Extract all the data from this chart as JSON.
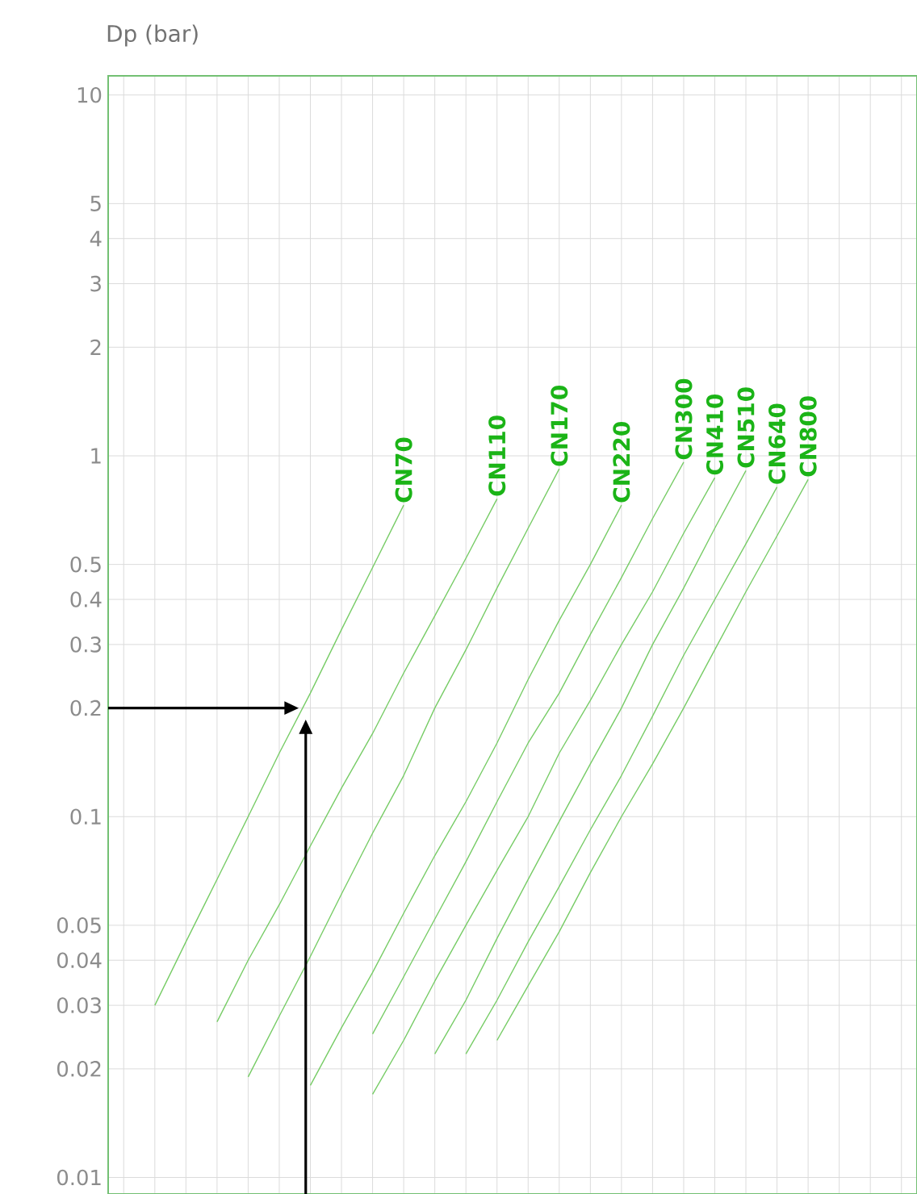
{
  "chart_data": {
    "type": "line",
    "ylabel": "Dp (bar)",
    "log": "y",
    "grid": true,
    "tick_labels": "y",
    "marker": "none",
    "line_style": "solid",
    "categories": [
      null,
      null,
      null,
      null,
      null,
      null,
      null,
      null,
      null,
      null,
      null,
      null,
      null,
      null,
      null,
      null,
      null,
      null,
      null,
      null,
      null,
      null,
      null,
      null,
      null,
      null
    ],
    "ylim": [
      0.009,
      11.3
    ],
    "yticks": [
      0.01,
      0.02,
      0.03,
      0.04,
      0.05,
      0.1,
      0.2,
      0.3,
      0.4,
      0.5,
      1,
      2,
      3,
      4,
      5,
      10
    ],
    "series": [
      {
        "name": "CN70",
        "color": "#77cc66",
        "values": [
          null,
          0.03,
          0.045,
          0.067,
          0.1,
          0.15,
          0.22,
          0.33,
          0.49,
          0.73,
          null,
          null,
          null,
          null,
          null,
          null,
          null,
          null,
          null,
          null,
          null,
          null,
          null,
          null,
          null,
          null
        ]
      },
      {
        "name": "CN110",
        "color": "#77cc66",
        "values": [
          null,
          null,
          null,
          0.027,
          0.04,
          0.057,
          0.083,
          0.12,
          0.17,
          0.25,
          0.36,
          0.52,
          0.76,
          null,
          null,
          null,
          null,
          null,
          null,
          null,
          null,
          null,
          null,
          null,
          null,
          null
        ]
      },
      {
        "name": "CN170",
        "color": "#77cc66",
        "values": [
          null,
          null,
          null,
          null,
          0.019,
          0.028,
          0.041,
          0.061,
          0.09,
          0.13,
          0.2,
          0.29,
          0.43,
          0.63,
          0.92,
          null,
          null,
          null,
          null,
          null,
          null,
          null,
          null,
          null,
          null,
          null
        ]
      },
      {
        "name": "CN220",
        "color": "#77cc66",
        "values": [
          null,
          null,
          null,
          null,
          null,
          null,
          0.018,
          0.026,
          0.037,
          0.054,
          0.078,
          0.11,
          0.16,
          0.24,
          0.35,
          0.5,
          0.73,
          null,
          null,
          null,
          null,
          null,
          null,
          null,
          null,
          null
        ]
      },
      {
        "name": "CN300",
        "color": "#77cc66",
        "values": [
          null,
          null,
          null,
          null,
          null,
          null,
          null,
          null,
          0.025,
          0.036,
          0.052,
          0.075,
          0.11,
          0.16,
          0.22,
          0.32,
          0.46,
          0.67,
          0.96,
          null,
          null,
          null,
          null,
          null,
          null,
          null
        ]
      },
      {
        "name": "CN410",
        "color": "#77cc66",
        "values": [
          null,
          null,
          null,
          null,
          null,
          null,
          null,
          null,
          0.017,
          0.024,
          0.035,
          0.05,
          0.071,
          0.1,
          0.15,
          0.21,
          0.3,
          0.42,
          0.61,
          0.87,
          null,
          null,
          null,
          null,
          null,
          null
        ]
      },
      {
        "name": "CN510",
        "color": "#77cc66",
        "values": [
          null,
          null,
          null,
          null,
          null,
          null,
          null,
          null,
          null,
          null,
          0.022,
          0.031,
          0.046,
          0.067,
          0.097,
          0.14,
          0.2,
          0.3,
          0.43,
          0.63,
          0.91,
          null,
          null,
          null,
          null,
          null
        ]
      },
      {
        "name": "CN640",
        "color": "#77cc66",
        "values": [
          null,
          null,
          null,
          null,
          null,
          null,
          null,
          null,
          null,
          null,
          null,
          0.022,
          0.031,
          0.045,
          0.064,
          0.092,
          0.13,
          0.19,
          0.28,
          0.4,
          0.57,
          0.82,
          null,
          null,
          null,
          null
        ]
      },
      {
        "name": "CN800",
        "color": "#77cc66",
        "values": [
          null,
          null,
          null,
          null,
          null,
          null,
          null,
          null,
          null,
          null,
          null,
          null,
          0.024,
          0.034,
          0.048,
          0.07,
          0.1,
          0.14,
          0.2,
          0.29,
          0.42,
          0.6,
          0.86,
          null,
          null,
          null
        ]
      }
    ]
  }
}
